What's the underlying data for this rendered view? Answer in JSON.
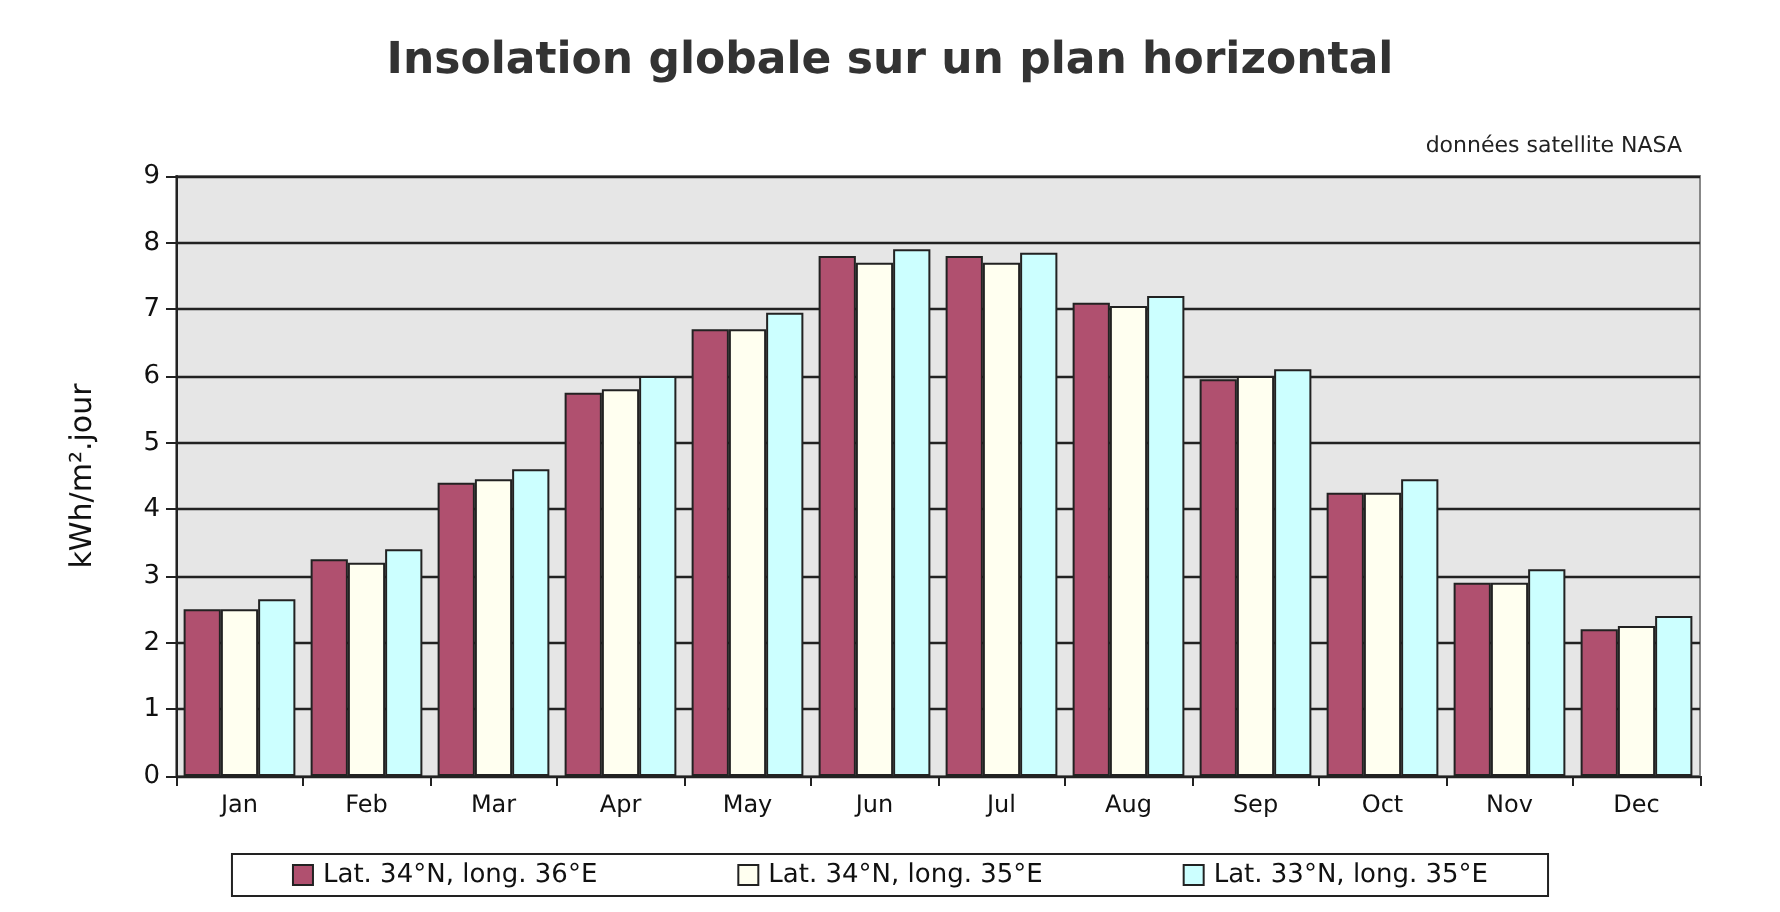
{
  "chart_data": {
    "type": "bar",
    "title": "Insolation globale sur un plan horizontal",
    "ylabel": "kWh/m².jour",
    "annotations": [
      "données satellite NASA"
    ],
    "categories": [
      "Jan",
      "Feb",
      "Mar",
      "Apr",
      "May",
      "Jun",
      "Jul",
      "Aug",
      "Sep",
      "Oct",
      "Nov",
      "Dec"
    ],
    "series": [
      {
        "name": "Lat. 34°N, long. 36°E",
        "color": "#b0506f",
        "values": [
          2.5,
          3.25,
          4.4,
          5.75,
          6.7,
          7.8,
          7.8,
          7.1,
          5.95,
          4.25,
          2.9,
          2.2
        ]
      },
      {
        "name": "Lat. 34°N, long. 35°E",
        "color": "#fffff0",
        "values": [
          2.5,
          3.2,
          4.45,
          5.8,
          6.7,
          7.7,
          7.7,
          7.05,
          6.0,
          4.25,
          2.9,
          2.25
        ]
      },
      {
        "name": "Lat. 33°N, long. 35°E",
        "color": "#ccffff",
        "values": [
          2.65,
          3.4,
          4.6,
          6.0,
          6.95,
          7.9,
          7.85,
          7.2,
          6.1,
          4.45,
          3.1,
          2.4
        ]
      }
    ],
    "ylim": [
      0,
      9
    ],
    "yticks": [
      0,
      1,
      2,
      3,
      4,
      5,
      6,
      7,
      8,
      9
    ],
    "grid": "y",
    "legend": "bottom"
  }
}
